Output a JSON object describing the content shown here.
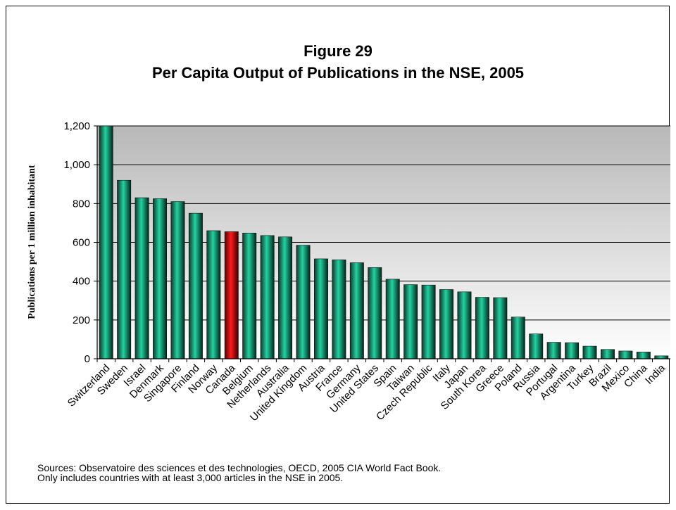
{
  "chart_data": {
    "type": "bar",
    "title": "Figure 29",
    "subtitle": "Per Capita Output of Publications in the NSE, 2005",
    "ylabel": "Publications per 1 million inhabitant",
    "xlabel": "",
    "ylim": [
      0,
      1200
    ],
    "yticks": [
      0,
      200,
      400,
      600,
      800,
      1000,
      1200
    ],
    "ytick_labels": [
      "0",
      "200",
      "400",
      "600",
      "800",
      "1,000",
      "1,200"
    ],
    "grid": true,
    "legend": "none",
    "categories": [
      "Switzerland",
      "Sweden",
      "Israel",
      "Denmark",
      "Singapore",
      "Finland",
      "Norway",
      "Canada",
      "Belgium",
      "Netherlands",
      "Australia",
      "United Kingdom",
      "Austria",
      "France",
      "Germany",
      "United States",
      "Spain",
      "Taiwan",
      "Czech Republic",
      "Italy",
      "Japan",
      "South Korea",
      "Greece",
      "Poland",
      "Russia",
      "Portugal",
      "Argentina",
      "Turkey",
      "Brazil",
      "Mexico",
      "China",
      "India"
    ],
    "values": [
      1200,
      920,
      830,
      825,
      810,
      750,
      660,
      655,
      648,
      635,
      628,
      585,
      515,
      510,
      495,
      470,
      410,
      382,
      380,
      357,
      345,
      317,
      315,
      215,
      128,
      85,
      83,
      65,
      48,
      40,
      35,
      15
    ],
    "highlight_category": "Canada",
    "bar_color": "#1fcc9a",
    "highlight_color": "#ff1a1a"
  },
  "footer": {
    "line1": "Sources: Observatoire des sciences et des technologies, OECD, 2005 CIA World Fact Book.",
    "line2": "Only includes countries with at least 3,000 articles in the NSE in 2005."
  }
}
